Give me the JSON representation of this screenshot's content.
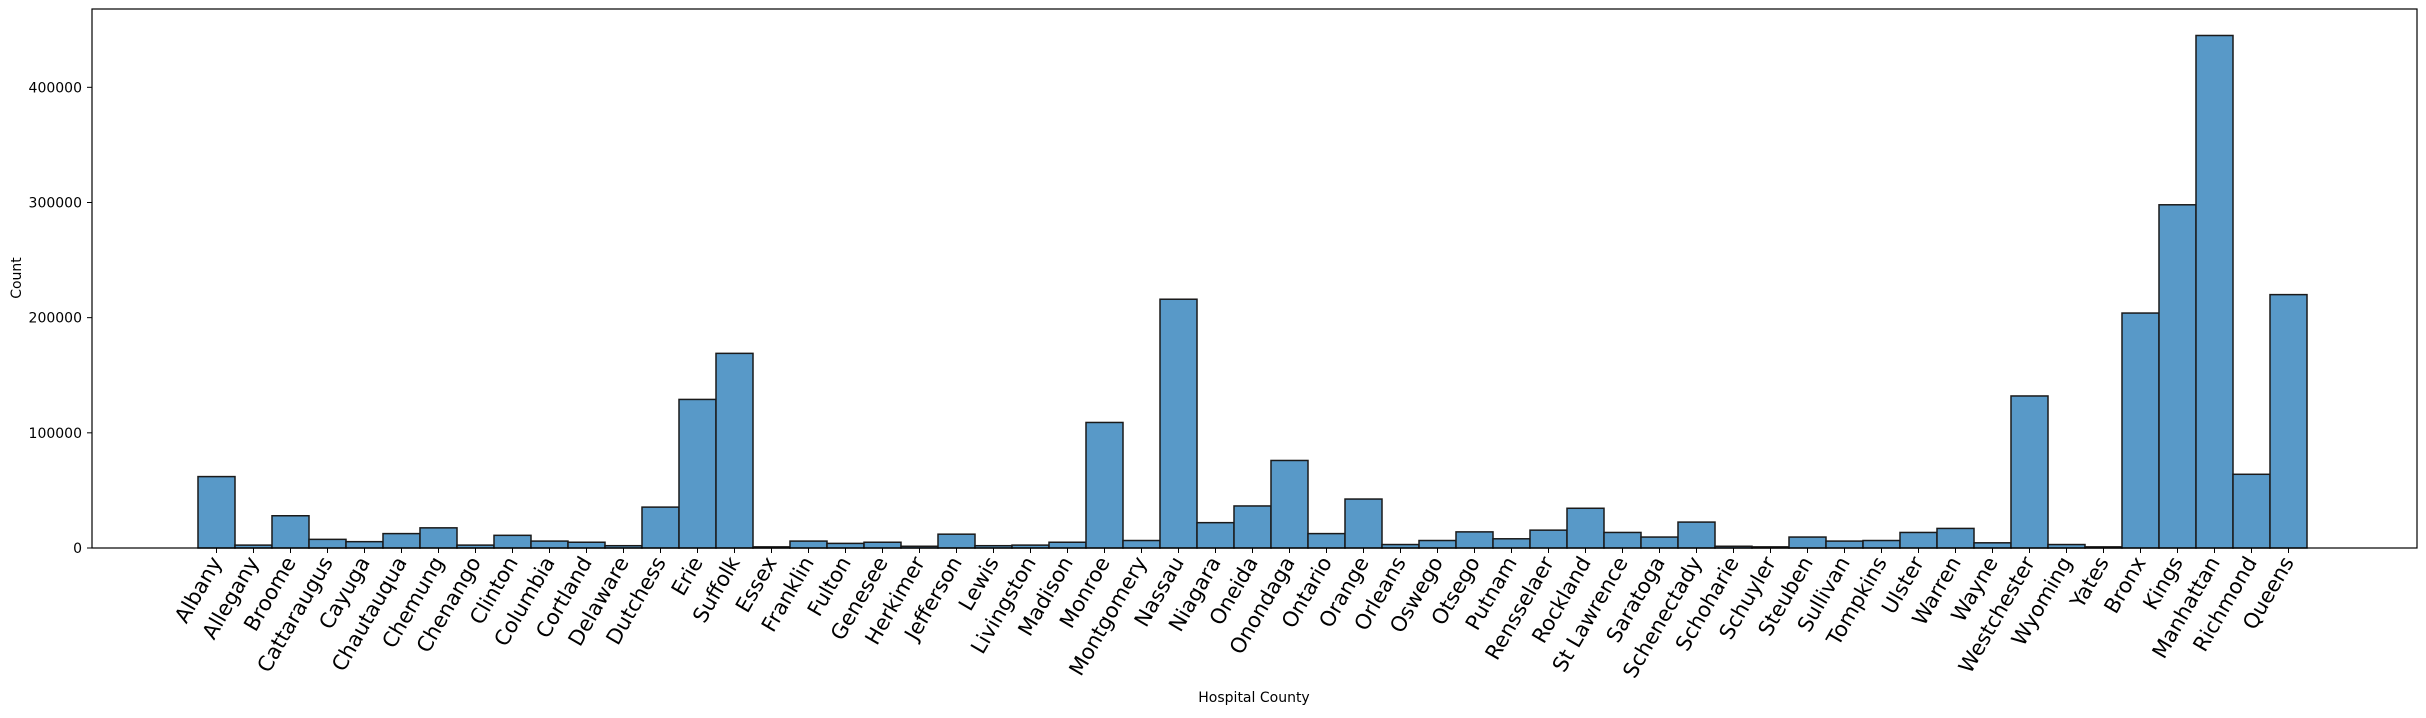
{
  "chart_data": {
    "type": "bar",
    "xlabel": "Hospital County",
    "ylabel": "Count",
    "ylim": [
      0,
      468000
    ],
    "yticks": [
      0,
      100000,
      200000,
      300000,
      400000
    ],
    "ytick_labels": [
      "0",
      "100000",
      "200000",
      "300000",
      "400000"
    ],
    "grid": false,
    "bar_color": "#5899c8",
    "edge_color": "#1a1a1a",
    "categories": [
      "Albany",
      "Allegany",
      "Broome",
      "Cattaraugus",
      "Cayuga",
      "Chautauqua",
      "Chemung",
      "Chenango",
      "Clinton",
      "Columbia",
      "Cortland",
      "Delaware",
      "Dutchess",
      "Erie",
      "Suffolk",
      "Essex",
      "Franklin",
      "Fulton",
      "Genesee",
      "Herkimer",
      "Jefferson",
      "Lewis",
      "Livingston",
      "Madison",
      "Monroe",
      "Montgomery",
      "Nassau",
      "Niagara",
      "Oneida",
      "Onondaga",
      "Ontario",
      "Orange",
      "Orleans",
      "Oswego",
      "Otsego",
      "Putnam",
      "Rensselaer",
      "Rockland",
      "St Lawrence",
      "Saratoga",
      "Schenectady",
      "Schoharie",
      "Schuyler",
      "Steuben",
      "Sullivan",
      "Tompkins",
      "Ulster",
      "Warren",
      "Wayne",
      "Westchester",
      "Wyoming",
      "Yates",
      "Bronx",
      "Kings",
      "Manhattan",
      "Richmond",
      "Queens"
    ],
    "values": [
      62000,
      2500,
      28000,
      7500,
      5500,
      12500,
      17500,
      2500,
      11000,
      6000,
      5000,
      2000,
      35500,
      129000,
      169000,
      1000,
      6000,
      4000,
      5000,
      1500,
      12000,
      2000,
      2500,
      5000,
      109000,
      6500,
      216000,
      22000,
      36500,
      76000,
      12500,
      42500,
      3000,
      6500,
      14000,
      8000,
      15500,
      34500,
      13500,
      9500,
      22500,
      1500,
      1000,
      9500,
      6000,
      6500,
      13500,
      17000,
      4500,
      132000,
      3000,
      1000,
      204000,
      298000,
      445000,
      64000,
      220000
    ]
  }
}
